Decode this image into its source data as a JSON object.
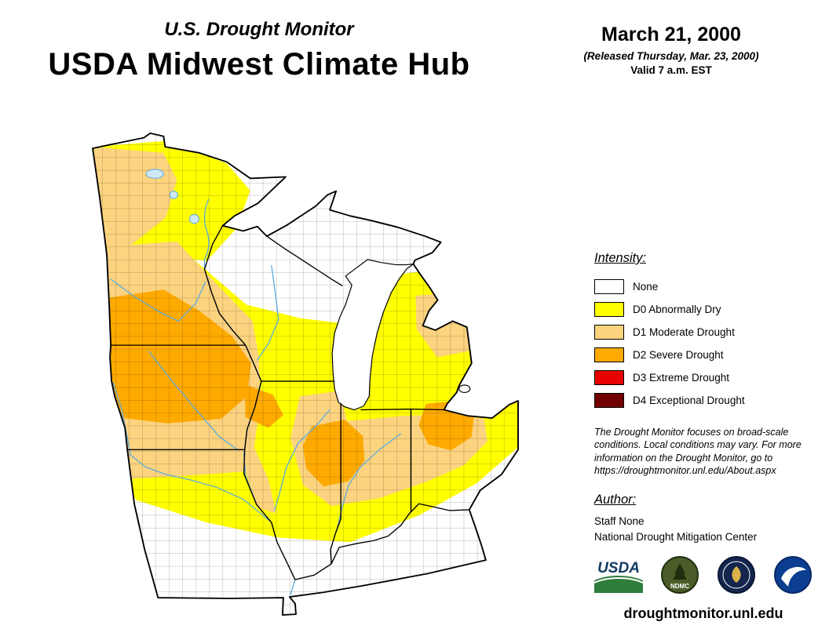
{
  "header": {
    "monitor_title": "U.S. Drought Monitor",
    "hub_title": "USDA Midwest Climate Hub",
    "date": "March 21, 2000",
    "released": "(Released Thursday, Mar. 23, 2000)",
    "valid": "Valid 7 a.m. EST"
  },
  "legend": {
    "heading": "Intensity:",
    "items": [
      {
        "code": "",
        "label": "None",
        "color": "#FFFFFF"
      },
      {
        "code": "D0",
        "label": "D0 Abnormally Dry",
        "color": "#FFFF00"
      },
      {
        "code": "D1",
        "label": "D1 Moderate Drought",
        "color": "#FCD37F"
      },
      {
        "code": "D2",
        "label": "D2 Severe Drought",
        "color": "#FFAA00"
      },
      {
        "code": "D3",
        "label": "D3 Extreme Drought",
        "color": "#E60000"
      },
      {
        "code": "D4",
        "label": "D4 Exceptional Drought",
        "color": "#730000"
      }
    ]
  },
  "disclaimer": "The Drought Monitor focuses on broad-scale conditions. Local conditions may vary. For more information on the Drought Monitor, go to https://droughtmonitor.unl.edu/About.aspx",
  "author": {
    "heading": "Author:",
    "name": "Staff None",
    "org": "National Drought Mitigation Center"
  },
  "logos": [
    {
      "name": "usda-logo",
      "label": "USDA"
    },
    {
      "name": "ndmc-logo",
      "label": "NDMC"
    },
    {
      "name": "commerce-seal-logo",
      "label": ""
    },
    {
      "name": "noaa-logo",
      "label": ""
    }
  ],
  "footer": {
    "url": "droughtmonitor.unl.edu"
  },
  "map": {
    "water_color": "#5AABE0"
  }
}
